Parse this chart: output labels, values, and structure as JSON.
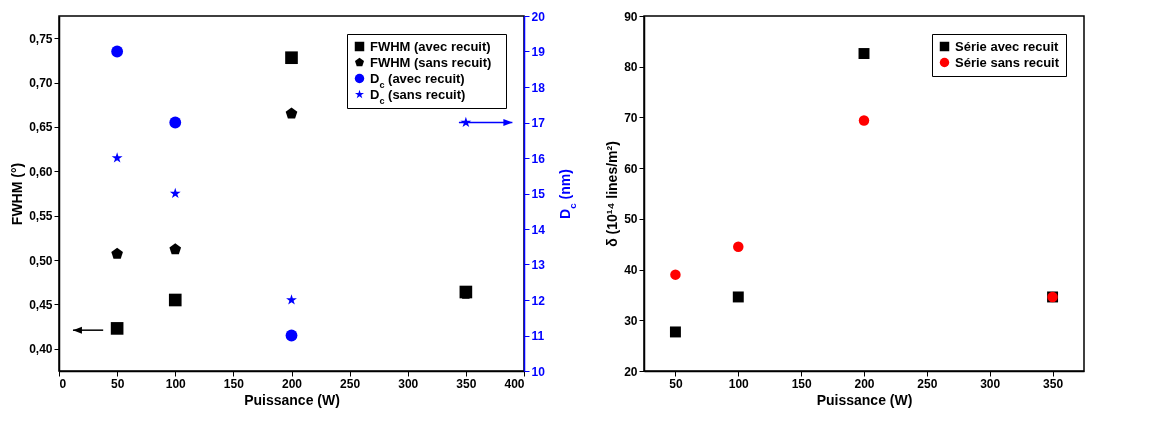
{
  "chart_data": [
    {
      "type": "scatter",
      "xlabel": "Puissance (W)",
      "ylabel": "FWHM (°)",
      "y2label": "D$_{c}$ (nm)",
      "x": [
        50,
        100,
        200,
        350
      ],
      "series": [
        {
          "name": "FWHM (avec recuit)",
          "color": "#000000",
          "marker": "square",
          "values": [
            0.423,
            0.455,
            0.728,
            0.464
          ]
        },
        {
          "name": "FWHM (sans recuit)",
          "color": "#000000",
          "values": [
            0.507,
            0.512,
            0.665,
            0.462
          ]
        },
        {
          "name": "D$_{c}$ (avec recuit)",
          "color": "#0000ff",
          "marker": "circle",
          "axis": "y2",
          "values": [
            19,
            17,
            11,
            null
          ]
        },
        {
          "name": "D$_{c}$ (sans recuit)",
          "color": "#0000ff",
          "marker": "star",
          "axis": "y2",
          "values": [
            16,
            15,
            12,
            17
          ]
        }
      ],
      "xlim": [
        0,
        400
      ],
      "xticks": [
        0,
        50,
        100,
        150,
        200,
        250,
        300,
        350,
        400
      ],
      "ylim": [
        0.375,
        0.775
      ],
      "yticks": [
        {
          "value": 0.4,
          "label": "0,40"
        },
        {
          "value": 0.45,
          "label": "0,45"
        },
        {
          "value": 0.5,
          "label": "0,50"
        },
        {
          "value": 0.55,
          "label": "0,55"
        },
        {
          "value": 0.6,
          "label": "0,60"
        },
        {
          "value": 0.65,
          "label": "0,65"
        },
        {
          "value": 0.7,
          "label": "0,70"
        },
        {
          "value": 0.75,
          "label": "0,75"
        }
      ],
      "y2lim": [
        10,
        20
      ],
      "y2ticks": [
        10,
        11,
        12,
        13,
        14,
        15,
        16,
        17,
        18,
        19,
        20
      ],
      "grid": false,
      "legend": "top right"
    },
    {
      "type": "scatter",
      "xlabel": "Puissance (W)",
      "ylabel": "δ (10¹⁴ lines/m²)",
      "x": [
        50,
        100,
        200,
        350
      ],
      "series": [
        {
          "name": "Série avec recuit",
          "color": "#000000",
          "marker": "square",
          "values": [
            27.7,
            34.6,
            82.6,
            34.6
          ]
        },
        {
          "name": "Série sans recuit",
          "color": "#ff0000",
          "marker": "circle",
          "values": [
            39,
            44.5,
            69.4,
            34.6
          ]
        }
      ],
      "xlim": [
        25,
        375
      ],
      "xticks": [
        50,
        100,
        150,
        200,
        250,
        300,
        350
      ],
      "ylim": [
        20,
        90
      ],
      "yticks": [
        20,
        30,
        40,
        50,
        60,
        70,
        80,
        90
      ],
      "grid": false,
      "legend": "top right"
    }
  ]
}
